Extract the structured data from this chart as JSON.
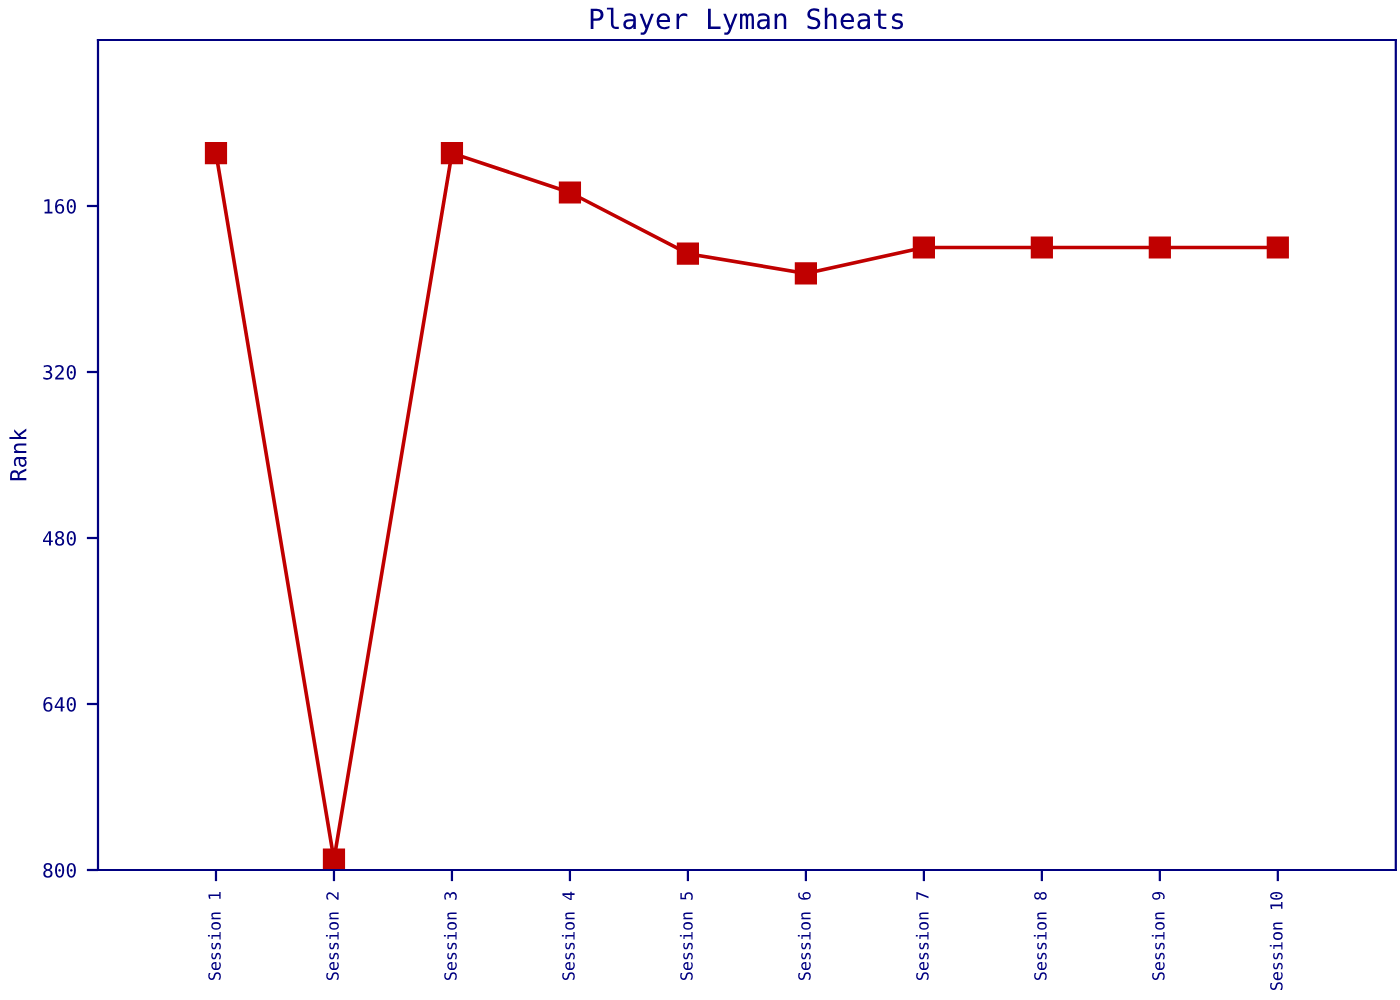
{
  "chart_data": {
    "type": "line",
    "title": "Player Lyman Sheats",
    "ylabel": "Rank",
    "categories": [
      "Session 1",
      "Session 2",
      "Session 3",
      "Session 4",
      "Session 5",
      "Session 6",
      "Session 7",
      "Session 8",
      "Session 9",
      "Session 10"
    ],
    "series": [
      {
        "color": "#c00000",
        "values": [
          109,
          790,
          109,
          147,
          206,
          225,
          200,
          200,
          200,
          200
        ]
      }
    ],
    "ylim": [
      800,
      0
    ],
    "yticks": [
      160,
      320,
      480,
      640,
      800
    ],
    "grid": false,
    "marker": "square",
    "line_style": "solid"
  }
}
